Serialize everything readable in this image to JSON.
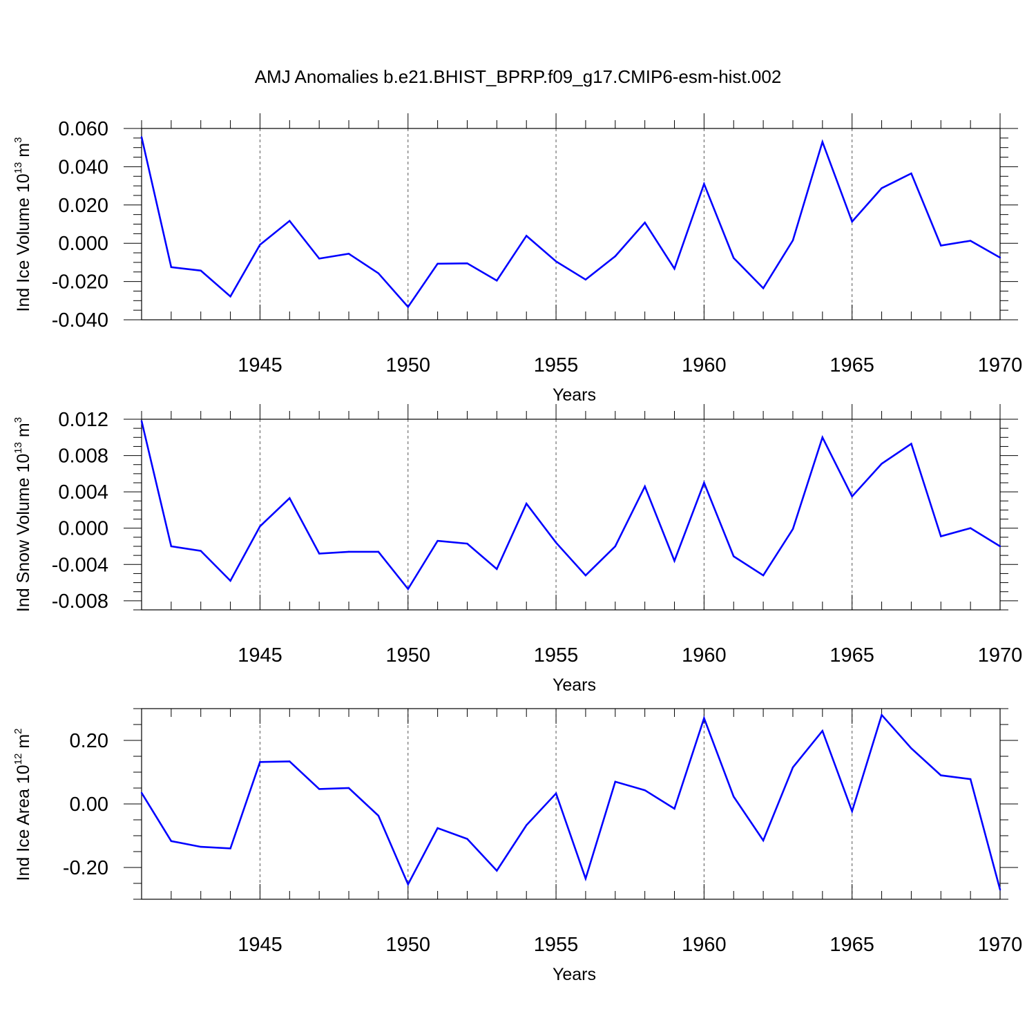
{
  "title": "AMJ Anomalies b.e21.BHIST_BPRP.f09_g17.CMIP6-esm-hist.002",
  "chart_data": [
    {
      "type": "line",
      "ylabel_text": "Ind Ice Volume 10",
      "ylabel_exp": "13",
      "ylabel_unit": " m",
      "ylabel_unit_exp": "3",
      "xlabel": "Years",
      "xlim": [
        1941,
        1970
      ],
      "ylim": [
        -0.04,
        0.06
      ],
      "yticks": [
        -0.04,
        -0.02,
        0.0,
        0.02,
        0.04,
        0.06
      ],
      "ytick_labels": [
        "-0.040",
        "-0.020",
        "0.000",
        "0.020",
        "0.040",
        "0.060"
      ],
      "y_minor_step": 0.005,
      "xticks": [
        1945,
        1950,
        1955,
        1960,
        1965,
        1970
      ],
      "xtick_labels": [
        "1945",
        "1950",
        "1955",
        "1960",
        "1965",
        "1970"
      ],
      "grid": "vertical dashed at major x ticks",
      "line_color": "#0000ff",
      "x": [
        1941,
        1942,
        1943,
        1944,
        1945,
        1946,
        1947,
        1948,
        1949,
        1950,
        1951,
        1952,
        1953,
        1954,
        1955,
        1956,
        1957,
        1958,
        1959,
        1960,
        1961,
        1962,
        1963,
        1964,
        1965,
        1966,
        1967,
        1968,
        1969,
        1970
      ],
      "values": [
        0.0555,
        -0.0125,
        -0.0143,
        -0.0278,
        -0.0008,
        0.0117,
        -0.008,
        -0.0055,
        -0.0157,
        -0.0333,
        -0.0107,
        -0.0105,
        -0.0195,
        0.0039,
        -0.0095,
        -0.019,
        -0.0068,
        0.0108,
        -0.0133,
        0.031,
        -0.0077,
        -0.0235,
        0.0015,
        0.053,
        0.0113,
        0.0288,
        0.0365,
        -0.0012,
        0.0013,
        -0.0075
      ]
    },
    {
      "type": "line",
      "ylabel_text": "Ind Snow Volume 10",
      "ylabel_exp": "13",
      "ylabel_unit": " m",
      "ylabel_unit_exp": "3",
      "xlabel": "Years",
      "xlim": [
        1941,
        1970
      ],
      "ylim": [
        -0.009,
        0.012
      ],
      "yticks": [
        -0.008,
        -0.004,
        0.0,
        0.004,
        0.008,
        0.012
      ],
      "ytick_labels": [
        "-0.008",
        "-0.004",
        "0.000",
        "0.004",
        "0.008",
        "0.012"
      ],
      "y_minor_step": 0.001,
      "xticks": [
        1945,
        1950,
        1955,
        1960,
        1965,
        1970
      ],
      "xtick_labels": [
        "1945",
        "1950",
        "1955",
        "1960",
        "1965",
        "1970"
      ],
      "grid": "vertical dashed at major x ticks",
      "line_color": "#0000ff",
      "x": [
        1941,
        1942,
        1943,
        1944,
        1945,
        1946,
        1947,
        1948,
        1949,
        1950,
        1951,
        1952,
        1953,
        1954,
        1955,
        1956,
        1957,
        1958,
        1959,
        1960,
        1961,
        1962,
        1963,
        1964,
        1965,
        1966,
        1967,
        1968,
        1969,
        1970
      ],
      "values": [
        0.0118,
        -0.002,
        -0.0025,
        -0.0058,
        0.0002,
        0.0033,
        -0.0028,
        -0.0026,
        -0.0026,
        -0.0067,
        -0.0014,
        -0.0017,
        -0.0045,
        0.0027,
        -0.0016,
        -0.0052,
        -0.002,
        0.0046,
        -0.0036,
        0.005,
        -0.0031,
        -0.0052,
        -0.0001,
        0.01,
        0.0035,
        0.0071,
        0.0093,
        -0.0009,
        0.0,
        -0.002
      ]
    },
    {
      "type": "line",
      "ylabel_text": "Ind Ice Area 10",
      "ylabel_exp": "12",
      "ylabel_unit": " m",
      "ylabel_unit_exp": "2",
      "xlabel": "Years",
      "xlim": [
        1941,
        1970
      ],
      "ylim": [
        -0.3,
        0.3
      ],
      "yticks": [
        -0.2,
        0.0,
        0.2
      ],
      "ytick_labels": [
        "-0.20",
        "0.00",
        "0.20"
      ],
      "y_minor_step": 0.05,
      "xticks": [
        1945,
        1950,
        1955,
        1960,
        1965,
        1970
      ],
      "xtick_labels": [
        "1945",
        "1950",
        "1955",
        "1960",
        "1965",
        "1970"
      ],
      "grid": "vertical dashed at major x ticks",
      "line_color": "#0000ff",
      "x": [
        1941,
        1942,
        1943,
        1944,
        1945,
        1946,
        1947,
        1948,
        1949,
        1950,
        1951,
        1952,
        1953,
        1954,
        1955,
        1956,
        1957,
        1958,
        1959,
        1960,
        1961,
        1962,
        1963,
        1964,
        1965,
        1966,
        1967,
        1968,
        1969,
        1970
      ],
      "values": [
        0.035,
        -0.117,
        -0.135,
        -0.14,
        0.132,
        0.134,
        0.047,
        0.05,
        -0.037,
        -0.253,
        -0.076,
        -0.11,
        -0.21,
        -0.067,
        0.033,
        -0.235,
        0.07,
        0.043,
        -0.015,
        0.27,
        0.023,
        -0.115,
        0.115,
        0.23,
        -0.023,
        0.28,
        0.175,
        0.09,
        0.078,
        -0.27
      ]
    }
  ]
}
